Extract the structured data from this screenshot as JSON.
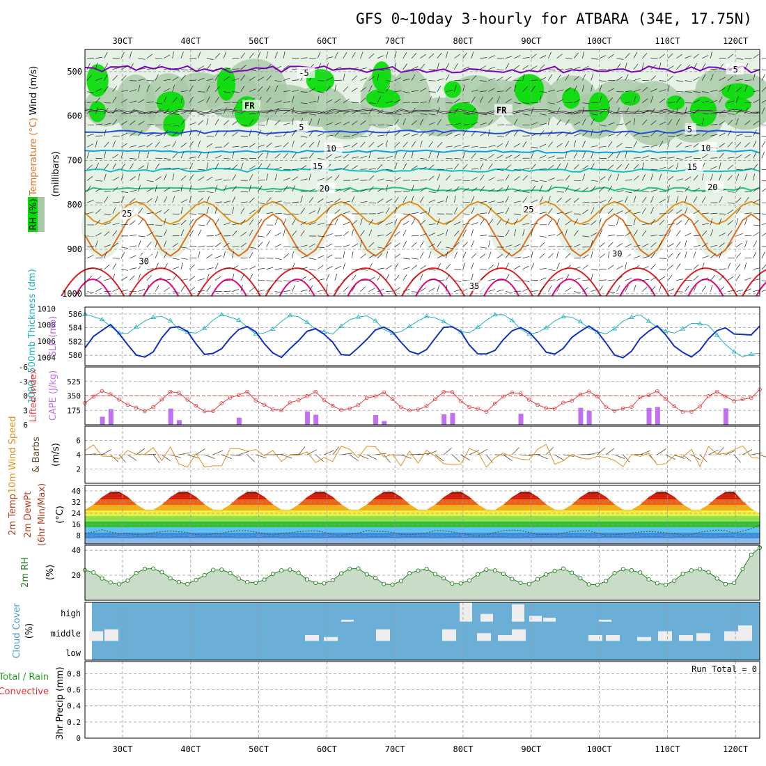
{
  "title": "GFS 0~10day 3-hourly for ATBARA (34E, 17.75N)",
  "x_ticks": [
    "30CT",
    "40CT",
    "50CT",
    "60CT",
    "70CT",
    "80CT",
    "90CT",
    "100CT",
    "110CT",
    "120CT"
  ],
  "colors": {
    "rh_green": "#00dd00",
    "rh_light": "#e6f2e6",
    "rh_mid": "#a8c8a8",
    "temp_purple": "#8000c0",
    "temp_blue": "#2050e0",
    "temp_lightblue": "#10a0e0",
    "temp_teal": "#10c0c0",
    "temp_green": "#20c080",
    "temp_orange": "#e09020",
    "temp_darkorange": "#e07020",
    "temp_red": "#e02020",
    "temp_magenta": "#e01080",
    "thickness": "#20b0c0",
    "slp": "#1030c0",
    "lifted": "#e04040",
    "cape": "#c070f0",
    "wind": "#e09020",
    "rh2m": "#208020",
    "cloud": "#6baed6",
    "cloud_white": "#eeeeee"
  },
  "panel_labels": {
    "upper_wind": "Wind (m/s)",
    "upper_temp": "Temperature (°C)",
    "upper_rh": "RH (%)",
    "upper_mb": "(millibars)",
    "thickness": "1000~500mb Thickness (dm)",
    "slp": "SLP (mb)",
    "lifted": "Lifted Index",
    "cape": "CAPE (J/kg)",
    "wind10": "10m Wind Speed",
    "barbs": "& Barbs",
    "wind_unit": "(m/s)",
    "temp2m": "2m Temp",
    "dewpt": "2m DewPt",
    "minmax": "(6hr Min/Max)",
    "temp_unit": "(°C)",
    "rh2m": "2m RH",
    "rh_unit": "(%)",
    "cloud": "Cloud Cover",
    "cloud_unit": "(%)",
    "precip": "3hr Precip (mm)",
    "precip_total": "Total / Rain",
    "precip_conv": "Convective",
    "run_total": "Run Total = 0"
  },
  "chart_data": [
    {
      "type": "contour",
      "panel": "upper_air",
      "y_ticks": [
        500,
        600,
        700,
        800,
        900,
        1000
      ],
      "ylabel": "(millibars)",
      "contour_labels": [
        {
          "text": "-5",
          "x": 2.6,
          "p": 508
        },
        {
          "text": "-5",
          "x": 8.9,
          "p": 500
        },
        {
          "text": "FR",
          "x": 1.8,
          "p": 582
        },
        {
          "text": "FR",
          "x": 5.5,
          "p": 592
        },
        {
          "text": "FR",
          "x": 9.7,
          "p": 590
        },
        {
          "text": "5",
          "x": 2.6,
          "p": 630
        },
        {
          "text": "5",
          "x": 8.3,
          "p": 635
        },
        {
          "text": "10",
          "x": 3.0,
          "p": 678
        },
        {
          "text": "10",
          "x": 8.5,
          "p": 677
        },
        {
          "text": "15",
          "x": 2.8,
          "p": 718
        },
        {
          "text": "15",
          "x": 8.3,
          "p": 720
        },
        {
          "text": "20",
          "x": 2.9,
          "p": 768
        },
        {
          "text": "20",
          "x": 8.6,
          "p": 765
        },
        {
          "text": "25",
          "x": 0.0,
          "p": 825
        },
        {
          "text": "25",
          "x": 5.9,
          "p": 815
        },
        {
          "text": "30",
          "x": 0.25,
          "p": 932
        },
        {
          "text": "30",
          "x": 7.2,
          "p": 915
        },
        {
          "text": "35",
          "x": 5.1,
          "p": 988
        }
      ]
    },
    {
      "type": "line",
      "panel": "thickness_slp",
      "series": [
        {
          "name": "1000~500mb Thickness (dm)",
          "axis": [
            580,
            582,
            584,
            586
          ]
        },
        {
          "name": "SLP (mb)",
          "axis": [
            1004,
            1006,
            1008,
            1010
          ]
        }
      ]
    },
    {
      "type": "line+bar",
      "panel": "lifted_cape",
      "lifted_axis": [
        "-6",
        "-3",
        "0",
        "3",
        "6"
      ],
      "cape_axis": [
        175,
        350,
        525
      ]
    },
    {
      "type": "line",
      "panel": "wind10m",
      "y_ticks": [
        2,
        4,
        6
      ]
    },
    {
      "type": "area",
      "panel": "temp2m",
      "y_ticks": [
        8,
        16,
        24,
        32,
        40
      ]
    },
    {
      "type": "area",
      "panel": "rh2m",
      "y_ticks": [
        20,
        40
      ]
    },
    {
      "type": "bar",
      "panel": "cloud",
      "y_ticks": [
        "high",
        "middle",
        "low"
      ]
    },
    {
      "type": "bar",
      "panel": "precip",
      "y_ticks": [
        "0",
        "0.2",
        "0.4",
        "0.6",
        "0.8"
      ]
    }
  ]
}
